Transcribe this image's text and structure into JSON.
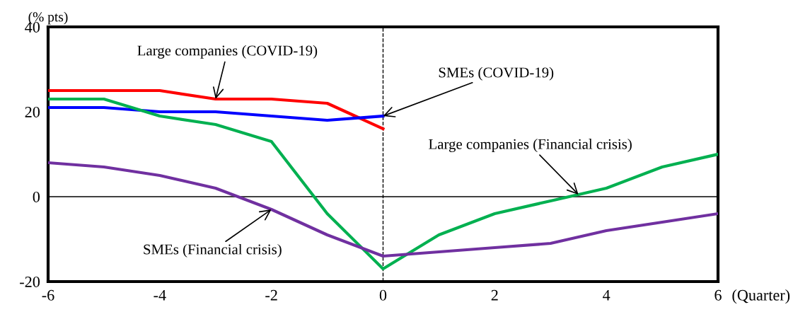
{
  "chart_data": {
    "type": "line",
    "ylabel": "(% pts)",
    "xlabel": "(Quarter)",
    "x": [
      -6,
      -5,
      -4,
      -3,
      -2,
      -1,
      0,
      1,
      2,
      3,
      4,
      5,
      6
    ],
    "xlim": [
      -6,
      6
    ],
    "xticks": [
      -6,
      -4,
      -2,
      0,
      2,
      4,
      6
    ],
    "ylim": [
      -20,
      40
    ],
    "yticks": [
      -20,
      0,
      20,
      40
    ],
    "grid": false,
    "legend": false,
    "line_style": "solid",
    "marker": "none",
    "series": [
      {
        "color": "#ff0000",
        "x": [
          -6,
          -5,
          -4,
          -3,
          -2,
          -1,
          0
        ],
        "values": [
          25,
          25,
          25,
          23,
          23,
          22,
          16
        ]
      },
      {
        "color": "#0000ff",
        "x": [
          -6,
          -5,
          -4,
          -3,
          -2,
          -1,
          0
        ],
        "values": [
          21,
          21,
          20,
          20,
          19,
          18,
          19
        ]
      },
      {
        "color": "#00b050",
        "values": [
          23,
          23,
          19,
          17,
          13,
          -4,
          -17,
          -9,
          -4,
          -1,
          2,
          7,
          10
        ]
      },
      {
        "color": "#7030a0",
        "values": [
          8,
          7,
          5,
          2,
          -3,
          -9,
          -14,
          -13,
          -12,
          -11,
          -8,
          -6,
          -4
        ]
      }
    ],
    "ref_lines": [
      {
        "axis": "y",
        "value": 0,
        "color": "#000000",
        "line_style": "solid"
      },
      {
        "axis": "x",
        "value": 0,
        "color": "#000000",
        "line_style": "dashed"
      }
    ],
    "annotations": [
      {
        "text": "Large companies (COVID-19)",
        "x": -3,
        "y": 23
      },
      {
        "text": "SMEs (COVID-19)",
        "x": 0,
        "y": 19
      },
      {
        "text": "Large companies (Financial crisis)",
        "x": 3.5,
        "y": 0.5
      },
      {
        "text": "SMEs (Financial crisis)",
        "x": -2,
        "y": -3
      }
    ]
  }
}
